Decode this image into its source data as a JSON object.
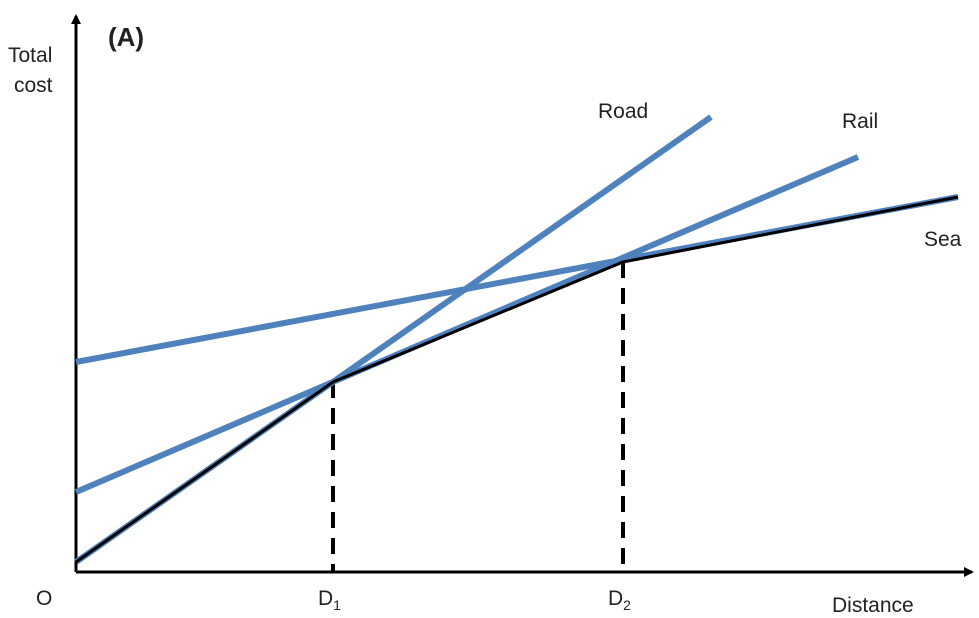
{
  "chart_data": {
    "type": "line",
    "panel_label": "(A)",
    "xlabel": "Distance",
    "ylabel": [
      "Total",
      "cost"
    ],
    "origin_label": "O",
    "x_ticks": [
      {
        "base": "D",
        "sub": "1"
      },
      {
        "base": "D",
        "sub": "2"
      }
    ],
    "series": [
      {
        "name": "Road",
        "color": "#4f81bd",
        "x": [
          0,
          635
        ],
        "y": [
          10,
          455
        ]
      },
      {
        "name": "Rail",
        "color": "#4f81bd",
        "x": [
          0,
          782
        ],
        "y": [
          80,
          415
        ]
      },
      {
        "name": "Sea",
        "color": "#4f81bd",
        "x": [
          0,
          882
        ],
        "y": [
          210,
          375
        ]
      }
    ],
    "envelope": {
      "color": "#000000",
      "x": [
        0,
        257,
        547,
        882
      ],
      "y": [
        10,
        190,
        310,
        375
      ]
    },
    "breakpoints": [
      257,
      547
    ],
    "xlim": [
      0,
      900
    ],
    "ylim": [
      0,
      540
    ],
    "grid": false,
    "legend": "none"
  }
}
